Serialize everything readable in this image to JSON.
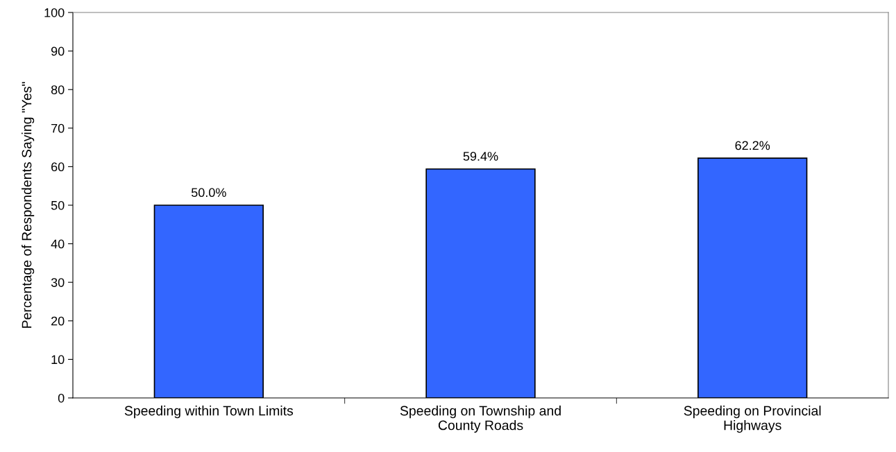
{
  "chart_data": {
    "type": "bar",
    "categories": [
      "Speeding within Town Limits",
      "Speeding on Township and\nCounty Roads",
      "Speeding on Provincial\nHighways"
    ],
    "values": [
      50.0,
      59.4,
      62.2
    ],
    "value_labels": [
      "50.0%",
      "59.4%",
      "62.2%"
    ],
    "color": "#3366ff",
    "ylabel": "Percentage of Respondents Saying \"Yes\"",
    "ylim": [
      0,
      100
    ],
    "yticks": [
      0,
      10,
      20,
      30,
      40,
      50,
      60,
      70,
      80,
      90,
      100
    ],
    "grid": false,
    "legend": false
  }
}
